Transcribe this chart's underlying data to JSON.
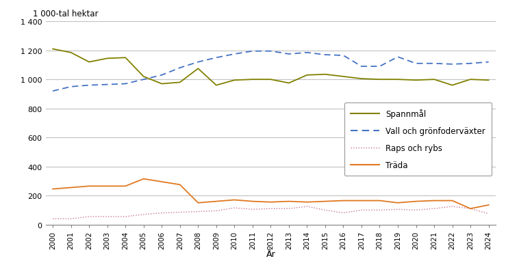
{
  "years": [
    2000,
    2001,
    2002,
    2003,
    2004,
    2005,
    2006,
    2007,
    2008,
    2009,
    2010,
    2011,
    2012,
    2013,
    2014,
    2015,
    2016,
    2017,
    2018,
    2019,
    2020,
    2021,
    2022,
    2023,
    2024
  ],
  "spannmal": [
    1210,
    1185,
    1120,
    1145,
    1150,
    1020,
    970,
    980,
    1075,
    960,
    995,
    1000,
    1000,
    975,
    1030,
    1035,
    1020,
    1005,
    1000,
    1000,
    995,
    1000,
    960,
    1000,
    995
  ],
  "vall": [
    920,
    950,
    960,
    965,
    970,
    1000,
    1030,
    1080,
    1120,
    1150,
    1175,
    1195,
    1195,
    1175,
    1185,
    1170,
    1165,
    1090,
    1090,
    1155,
    1110,
    1110,
    1105,
    1110,
    1120
  ],
  "raps": [
    40,
    40,
    55,
    55,
    55,
    70,
    80,
    85,
    90,
    95,
    115,
    105,
    110,
    110,
    125,
    100,
    80,
    100,
    100,
    105,
    100,
    110,
    125,
    110,
    75
  ],
  "trada": [
    245,
    255,
    265,
    265,
    265,
    315,
    295,
    275,
    150,
    160,
    170,
    160,
    155,
    160,
    155,
    160,
    165,
    165,
    165,
    150,
    160,
    165,
    165,
    110,
    135
  ],
  "title": "1 000-tal hektar",
  "xlabel": "År",
  "ylim": [
    0,
    1400
  ],
  "yticks": [
    0,
    200,
    400,
    600,
    800,
    1000,
    1200,
    1400
  ],
  "ytick_labels": [
    "0",
    "200",
    "400",
    "600",
    "800",
    "1 000",
    "1 200",
    "1 400"
  ],
  "spannmal_color": "#808000",
  "vall_color": "#4472C4",
  "raps_color": "#C8748A",
  "trada_color": "#E07820",
  "legend_labels": [
    "Spannmål",
    "Vall och grönfoderväxter",
    "Raps och rybs",
    "Träda"
  ],
  "background_color": "#ffffff",
  "grid_color": "#C0C0C0"
}
